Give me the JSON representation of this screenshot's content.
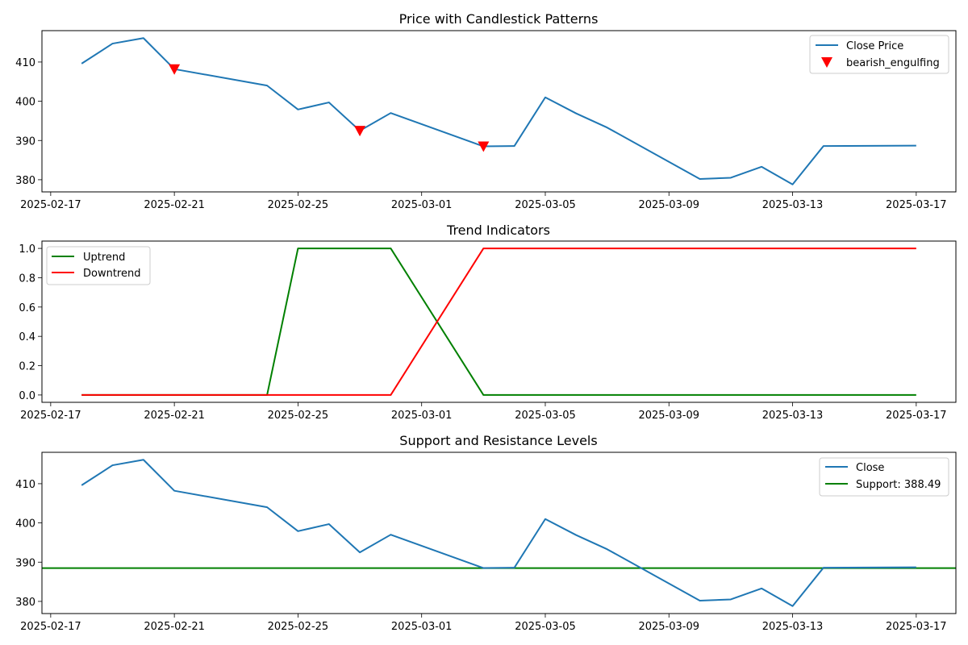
{
  "chart_data": [
    {
      "type": "line",
      "title": "Price with Candlestick Patterns",
      "x_type": "date",
      "xlim": [
        "2025-02-16T17:12",
        "2025-03-18T06:48"
      ],
      "ylim": [
        376.9,
        418.0
      ],
      "x_ticks": [
        "2025-02-17",
        "2025-02-21",
        "2025-02-25",
        "2025-03-01",
        "2025-03-05",
        "2025-03-09",
        "2025-03-13",
        "2025-03-17"
      ],
      "y_ticks": [
        380,
        390,
        400,
        410
      ],
      "y_tick_labels": [
        "380",
        "390",
        "400",
        "410"
      ],
      "legend_position": "upper right",
      "series": [
        {
          "name": "Close Price",
          "color": "#1f77b4",
          "x": [
            "2025-02-18",
            "2025-02-19",
            "2025-02-20",
            "2025-02-21",
            "2025-02-24",
            "2025-02-25",
            "2025-02-26",
            "2025-02-27",
            "2025-02-28",
            "2025-03-03",
            "2025-03-04",
            "2025-03-05",
            "2025-03-06",
            "2025-03-07",
            "2025-03-10",
            "2025-03-11",
            "2025-03-12",
            "2025-03-13",
            "2025-03-14",
            "2025-03-17"
          ],
          "values": [
            409.6,
            414.7,
            416.1,
            408.2,
            404.0,
            397.9,
            399.7,
            392.5,
            397.0,
            388.5,
            388.6,
            401.0,
            396.9,
            393.3,
            380.2,
            380.5,
            383.3,
            378.8,
            388.6,
            388.7
          ]
        }
      ],
      "markers": [
        {
          "name": "bearish_engulfing",
          "color": "#ff0000",
          "symbol": "triangle-down",
          "x": [
            "2025-02-21",
            "2025-02-27",
            "2025-03-03"
          ],
          "values": [
            408.2,
            392.5,
            388.5
          ]
        }
      ]
    },
    {
      "type": "line",
      "title": "Trend Indicators",
      "x_type": "date",
      "xlim": [
        "2025-02-16T17:12",
        "2025-03-18T06:48"
      ],
      "ylim": [
        -0.05,
        1.05
      ],
      "x_ticks": [
        "2025-02-17",
        "2025-02-21",
        "2025-02-25",
        "2025-03-01",
        "2025-03-05",
        "2025-03-09",
        "2025-03-13",
        "2025-03-17"
      ],
      "y_ticks": [
        0,
        0.2,
        0.4,
        0.6,
        0.8,
        1.0
      ],
      "y_tick_labels": [
        "0.0",
        "0.2",
        "0.4",
        "0.6",
        "0.8",
        "1.0"
      ],
      "legend_position": "upper left",
      "series": [
        {
          "name": "Uptrend",
          "color": "#008000",
          "x": [
            "2025-02-18",
            "2025-02-19",
            "2025-02-20",
            "2025-02-21",
            "2025-02-24",
            "2025-02-25",
            "2025-02-26",
            "2025-02-27",
            "2025-02-28",
            "2025-03-03",
            "2025-03-04",
            "2025-03-05",
            "2025-03-06",
            "2025-03-07",
            "2025-03-10",
            "2025-03-11",
            "2025-03-12",
            "2025-03-13",
            "2025-03-14",
            "2025-03-17"
          ],
          "values": [
            0,
            0,
            0,
            0,
            0,
            1,
            1,
            1,
            1,
            0,
            0,
            0,
            0,
            0,
            0,
            0,
            0,
            0,
            0,
            0
          ]
        },
        {
          "name": "Downtrend",
          "color": "#ff0000",
          "x": [
            "2025-02-18",
            "2025-02-19",
            "2025-02-20",
            "2025-02-21",
            "2025-02-24",
            "2025-02-25",
            "2025-02-26",
            "2025-02-27",
            "2025-02-28",
            "2025-03-03",
            "2025-03-04",
            "2025-03-05",
            "2025-03-06",
            "2025-03-07",
            "2025-03-10",
            "2025-03-11",
            "2025-03-12",
            "2025-03-13",
            "2025-03-14",
            "2025-03-17"
          ],
          "values": [
            0,
            0,
            0,
            0,
            0,
            0,
            0,
            0,
            0,
            1,
            1,
            1,
            1,
            1,
            1,
            1,
            1,
            1,
            1,
            1
          ]
        }
      ]
    },
    {
      "type": "line",
      "title": "Support and Resistance Levels",
      "x_type": "date",
      "xlim": [
        "2025-02-16T17:12",
        "2025-03-18T06:48"
      ],
      "ylim": [
        376.9,
        418.0
      ],
      "x_ticks": [
        "2025-02-17",
        "2025-02-21",
        "2025-02-25",
        "2025-03-01",
        "2025-03-05",
        "2025-03-09",
        "2025-03-13",
        "2025-03-17"
      ],
      "y_ticks": [
        380,
        390,
        400,
        410
      ],
      "y_tick_labels": [
        "380",
        "390",
        "400",
        "410"
      ],
      "legend_position": "upper right",
      "series": [
        {
          "name": "Close",
          "color": "#1f77b4",
          "x": [
            "2025-02-18",
            "2025-02-19",
            "2025-02-20",
            "2025-02-21",
            "2025-02-24",
            "2025-02-25",
            "2025-02-26",
            "2025-02-27",
            "2025-02-28",
            "2025-03-03",
            "2025-03-04",
            "2025-03-05",
            "2025-03-06",
            "2025-03-07",
            "2025-03-10",
            "2025-03-11",
            "2025-03-12",
            "2025-03-13",
            "2025-03-14",
            "2025-03-17"
          ],
          "values": [
            409.6,
            414.7,
            416.1,
            408.2,
            404.0,
            397.9,
            399.7,
            392.5,
            397.0,
            388.5,
            388.6,
            401.0,
            396.9,
            393.3,
            380.2,
            380.5,
            383.3,
            378.8,
            388.6,
            388.7
          ]
        }
      ],
      "hlines": [
        {
          "name": "Support: 388.49",
          "color": "#008000",
          "value": 388.49
        }
      ]
    }
  ]
}
